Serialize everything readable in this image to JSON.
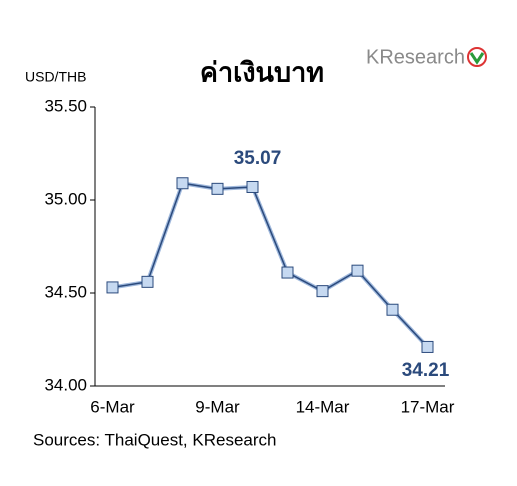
{
  "chart_data": {
    "type": "line",
    "title": "ค่าเงินบาท",
    "y_label": "USD/THB",
    "logo": "KResearch",
    "source": "Sources: ThaiQuest, KResearch",
    "categories": [
      "6-Mar",
      null,
      null,
      "9-Mar",
      null,
      null,
      "14-Mar",
      null,
      null,
      "17-Mar"
    ],
    "values": [
      34.53,
      34.56,
      35.09,
      35.06,
      35.07,
      34.61,
      34.51,
      34.62,
      34.41,
      34.21
    ],
    "labeled_points": [
      4,
      9
    ],
    "color": "#2b4a7c",
    "marker_color": "#c6d9f1",
    "ylim": [
      34,
      35.5
    ],
    "yticks": [
      {
        "value": 34,
        "label": "34.00"
      },
      {
        "value": 34.5,
        "label": "34.50"
      },
      {
        "value": 35,
        "label": "35.00"
      },
      {
        "value": 35.5,
        "label": "35.50"
      }
    ],
    "grid": false
  }
}
